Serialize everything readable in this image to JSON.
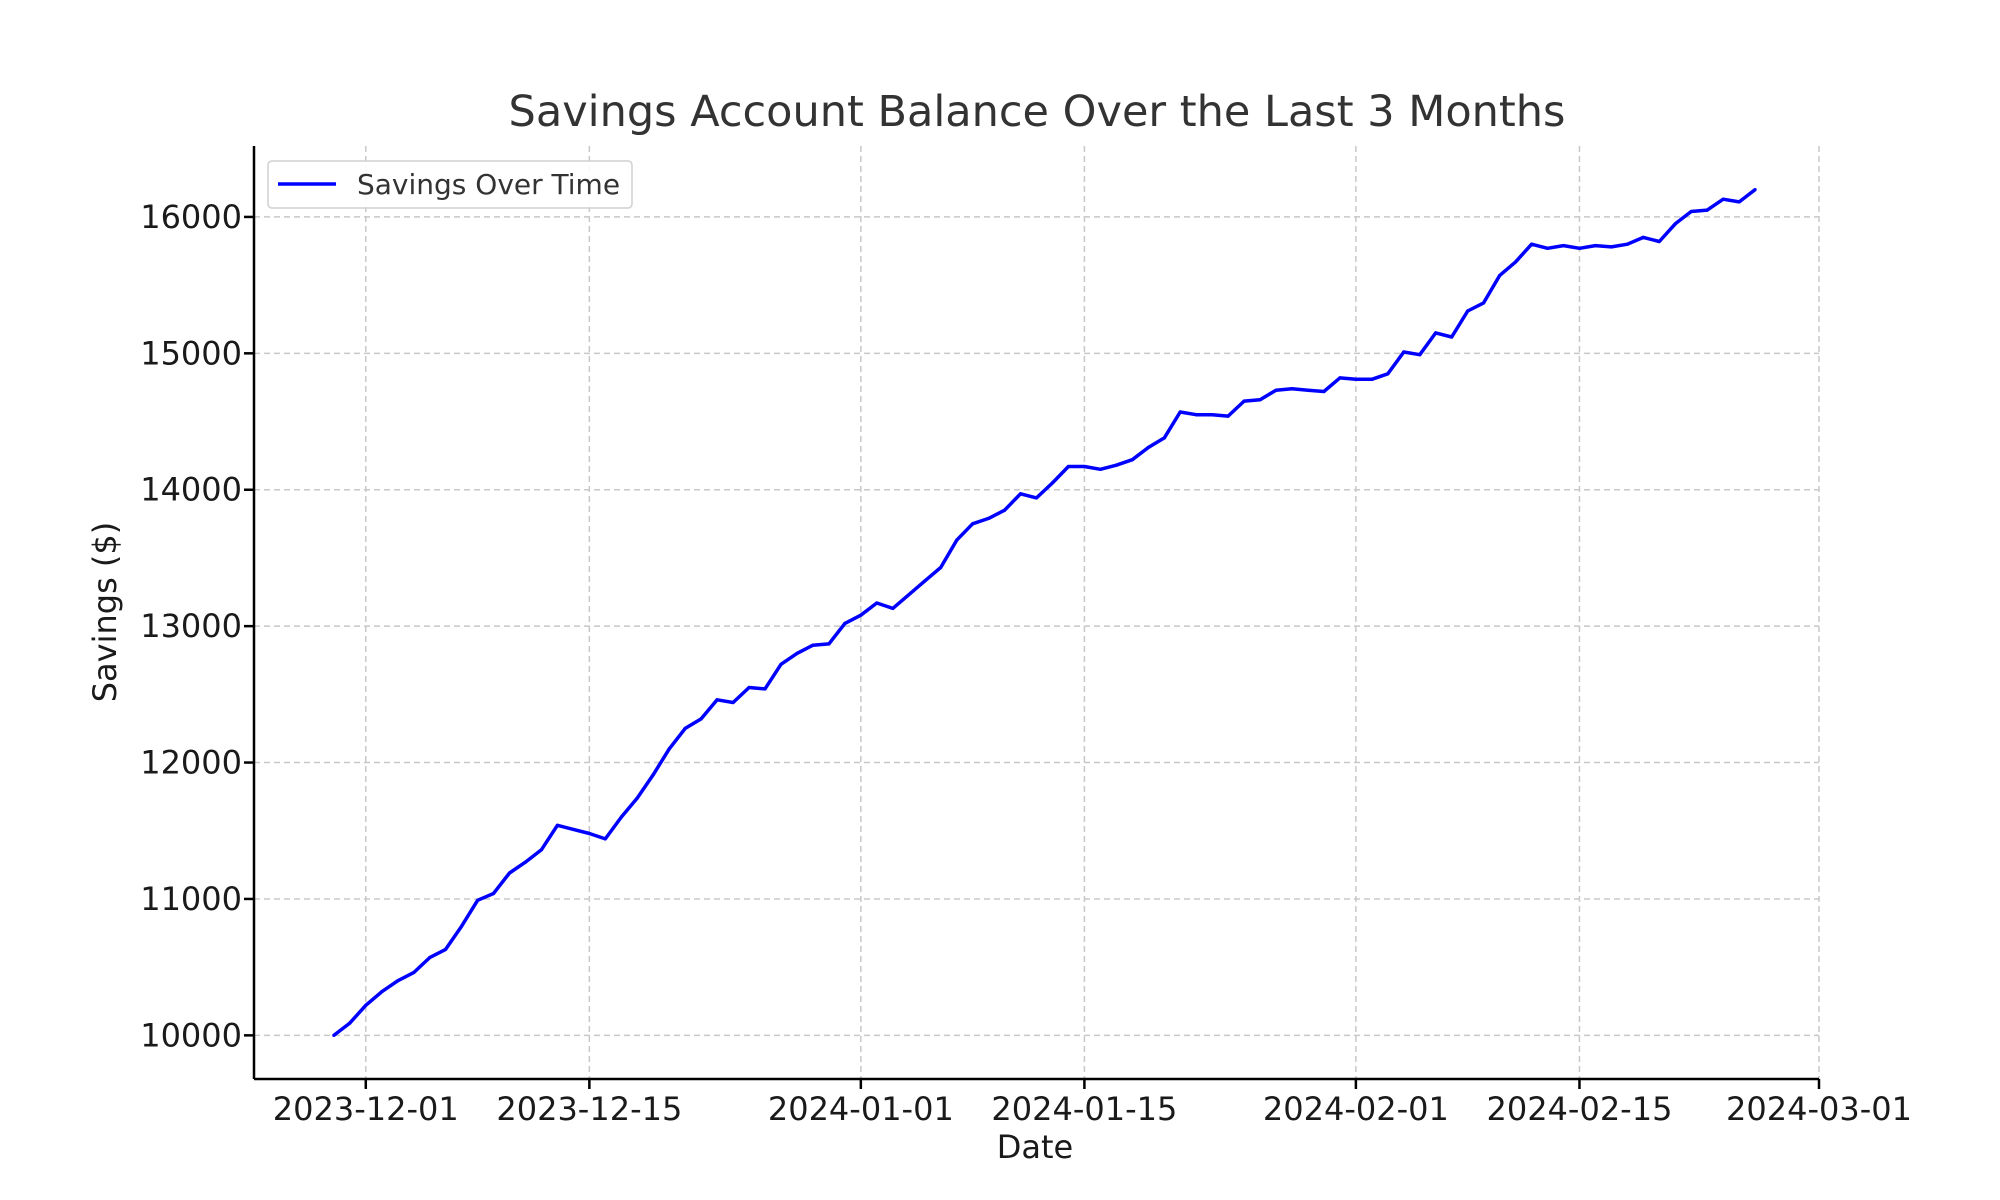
{
  "chart_data": {
    "type": "line",
    "title": "Savings Account Balance Over the Last 3 Months",
    "xlabel": "Date",
    "ylabel": "Savings ($)",
    "x_ticks": [
      "2023-12-01",
      "2023-12-15",
      "2024-01-01",
      "2024-01-15",
      "2024-02-01",
      "2024-02-15",
      "2024-03-01"
    ],
    "y_ticks": [
      10000,
      11000,
      12000,
      13000,
      14000,
      15000,
      16000
    ],
    "xlim": [
      "2023-11-24",
      "2024-03-01"
    ],
    "ylim": [
      9680,
      16520
    ],
    "grid": true,
    "legend_position": "top-left",
    "colors": {
      "line": "#0000ff",
      "grid": "#c8c8c8",
      "axis": "#000000"
    },
    "series": [
      {
        "name": "Savings Over Time",
        "x": [
          "2023-11-29",
          "2023-11-30",
          "2023-12-01",
          "2023-12-02",
          "2023-12-03",
          "2023-12-04",
          "2023-12-05",
          "2023-12-06",
          "2023-12-07",
          "2023-12-08",
          "2023-12-09",
          "2023-12-10",
          "2023-12-11",
          "2023-12-12",
          "2023-12-13",
          "2023-12-14",
          "2023-12-15",
          "2023-12-16",
          "2023-12-17",
          "2023-12-18",
          "2023-12-19",
          "2023-12-20",
          "2023-12-21",
          "2023-12-22",
          "2023-12-23",
          "2023-12-24",
          "2023-12-25",
          "2023-12-26",
          "2023-12-27",
          "2023-12-28",
          "2023-12-29",
          "2023-12-30",
          "2023-12-31",
          "2024-01-01",
          "2024-01-02",
          "2024-01-03",
          "2024-01-04",
          "2024-01-05",
          "2024-01-06",
          "2024-01-07",
          "2024-01-08",
          "2024-01-09",
          "2024-01-10",
          "2024-01-11",
          "2024-01-12",
          "2024-01-13",
          "2024-01-14",
          "2024-01-15",
          "2024-01-16",
          "2024-01-17",
          "2024-01-18",
          "2024-01-19",
          "2024-01-20",
          "2024-01-21",
          "2024-01-22",
          "2024-01-23",
          "2024-01-24",
          "2024-01-25",
          "2024-01-26",
          "2024-01-27",
          "2024-01-28",
          "2024-01-29",
          "2024-01-30",
          "2024-01-31",
          "2024-02-01",
          "2024-02-02",
          "2024-02-03",
          "2024-02-04",
          "2024-02-05",
          "2024-02-06",
          "2024-02-07",
          "2024-02-08",
          "2024-02-09",
          "2024-02-10",
          "2024-02-11",
          "2024-02-12",
          "2024-02-13",
          "2024-02-14",
          "2024-02-15",
          "2024-02-16",
          "2024-02-17",
          "2024-02-18",
          "2024-02-19",
          "2024-02-20",
          "2024-02-21",
          "2024-02-22",
          "2024-02-23",
          "2024-02-24",
          "2024-02-25",
          "2024-02-26"
        ],
        "y": [
          10000,
          10090,
          10220,
          10320,
          10400,
          10460,
          10570,
          10630,
          10800,
          10990,
          11040,
          11190,
          11270,
          11360,
          11540,
          11510,
          11480,
          11440,
          11600,
          11740,
          11910,
          12100,
          12250,
          12320,
          12460,
          12440,
          12550,
          12540,
          12720,
          12800,
          12860,
          12870,
          13020,
          13080,
          13170,
          13130,
          13230,
          13330,
          13430,
          13630,
          13750,
          13790,
          13850,
          13970,
          13940,
          14050,
          14170,
          14170,
          14150,
          14180,
          14220,
          14310,
          14380,
          14570,
          14550,
          14550,
          14540,
          14650,
          14660,
          14730,
          14740,
          14730,
          14720,
          14820,
          14810,
          14810,
          14850,
          15010,
          14990,
          15150,
          15120,
          15310,
          15370,
          15570,
          15670,
          15800,
          15770,
          15790,
          15770,
          15790,
          15780,
          15800,
          15850,
          15820,
          15950,
          16040,
          16050,
          16130,
          16110,
          16200
        ]
      }
    ]
  }
}
